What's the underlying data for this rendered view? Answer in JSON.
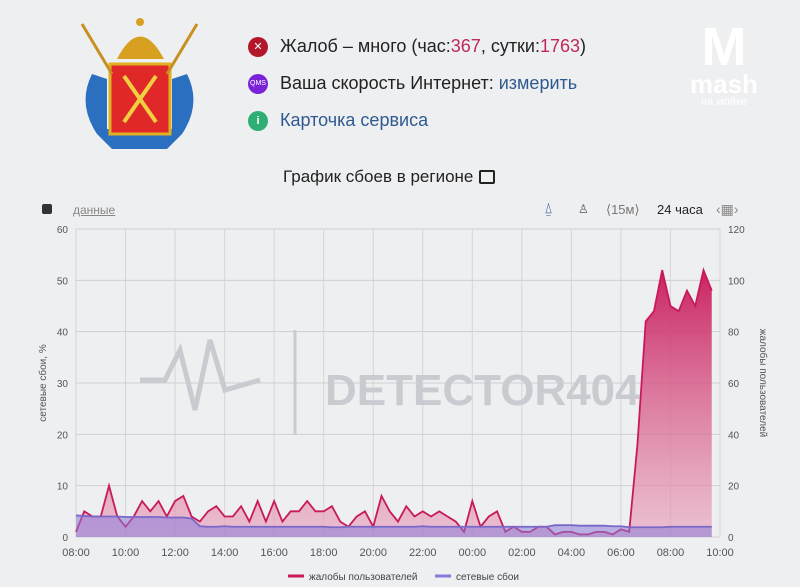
{
  "header": {
    "status_prefix": "Жалоб – много (час: ",
    "hour_count": "367",
    "day_sep": ", сутки: ",
    "day_count": "1763",
    "status_suffix": ")",
    "speed_label": "Ваша скорость Интернет: ",
    "speed_link": "измерить",
    "qms_label": "QMS",
    "card_link": "Карточка сервиса",
    "chart_title": "График сбоев в регионе"
  },
  "watermark": {
    "brand": "mash",
    "sub": "на мойке",
    "detector": "DETECTOR404"
  },
  "toolbar": {
    "data_link": "данные",
    "interval": "15м",
    "range": "24 часа"
  },
  "colors": {
    "complaints": "#c8195a",
    "failures": "#8a78d8",
    "link": "#2f5a8f",
    "error": "#b3182a",
    "qms": "#7b22d8",
    "info": "#2eae74"
  },
  "chart_data": {
    "type": "area",
    "ylabel_left": "сетевые сбои, %",
    "ylabel_right": "жалобы пользователей",
    "ylim_left": [
      0,
      60
    ],
    "ylim_right": [
      0,
      120
    ],
    "yticks_left": [
      "0",
      "10",
      "20",
      "30",
      "40",
      "50",
      "60"
    ],
    "yticks_right": [
      "0",
      "20",
      "40",
      "60",
      "80",
      "100",
      "120"
    ],
    "xticks": [
      "08:00",
      "10:00",
      "12:00",
      "14:00",
      "16:00",
      "18:00",
      "20:00",
      "22:00",
      "00:00",
      "02:00",
      "04:00",
      "06:00",
      "08:00",
      "10:00"
    ],
    "x_step_minutes": 20,
    "x_start": "08:00",
    "grid": true,
    "legend_position": "bottom",
    "series": [
      {
        "name": "жалобы пользователей",
        "axis": "right",
        "values": [
          2,
          10,
          8,
          8,
          20,
          8,
          4,
          8,
          14,
          10,
          14,
          8,
          14,
          16,
          8,
          6,
          10,
          12,
          8,
          8,
          12,
          6,
          14,
          6,
          14,
          6,
          10,
          10,
          14,
          10,
          10,
          12,
          6,
          4,
          8,
          10,
          4,
          16,
          10,
          6,
          12,
          8,
          10,
          8,
          10,
          8,
          6,
          2,
          14,
          4,
          8,
          10,
          2,
          4,
          2,
          2,
          4,
          4,
          1,
          2,
          2,
          1,
          1,
          2,
          2,
          1,
          3,
          2,
          36,
          84,
          88,
          104,
          90,
          88,
          96,
          90,
          104,
          96
        ]
      },
      {
        "name": "сетевые сбои",
        "axis": "left",
        "values": [
          4.2,
          4.1,
          4,
          4,
          4,
          4,
          3.9,
          3.9,
          3.9,
          3.9,
          3.9,
          3.8,
          3.8,
          3.8,
          3.6,
          2.1,
          2,
          2,
          2.1,
          2,
          2,
          2,
          2,
          2,
          2,
          2,
          2,
          2,
          2,
          2,
          2,
          1.9,
          1.9,
          2,
          2,
          2,
          2,
          2,
          2,
          2,
          2,
          2,
          2.1,
          2,
          2,
          2,
          2,
          2,
          2,
          2,
          2,
          2,
          2,
          2,
          2,
          2,
          2,
          2,
          2.3,
          2.3,
          2.3,
          2.2,
          2.2,
          2.2,
          2.2,
          2.1,
          2.1,
          1.9,
          1.9,
          1.9,
          1.9,
          1.9,
          2,
          2,
          2,
          2,
          2,
          2
        ]
      }
    ]
  }
}
